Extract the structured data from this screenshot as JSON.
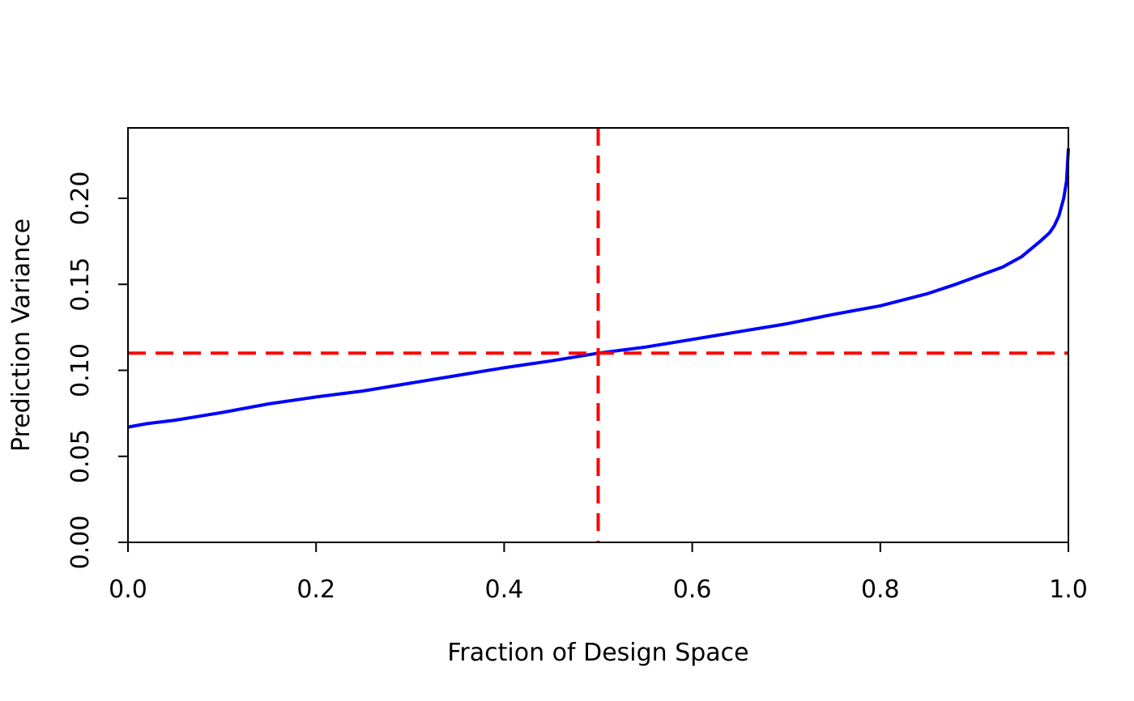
{
  "chart_data": {
    "type": "line",
    "title": "",
    "xlabel": "Fraction of Design Space",
    "ylabel": "Prediction Variance",
    "xlim": [
      0,
      1
    ],
    "ylim": [
      0,
      0.24
    ],
    "x_ticks": [
      {
        "value": 0.0,
        "label": "0.0"
      },
      {
        "value": 0.2,
        "label": "0.2"
      },
      {
        "value": 0.4,
        "label": "0.4"
      },
      {
        "value": 0.6,
        "label": "0.6"
      },
      {
        "value": 0.8,
        "label": "0.8"
      },
      {
        "value": 1.0,
        "label": "1.0"
      }
    ],
    "y_ticks": [
      {
        "value": 0.0,
        "label": "0.00"
      },
      {
        "value": 0.05,
        "label": "0.05"
      },
      {
        "value": 0.1,
        "label": "0.10"
      },
      {
        "value": 0.15,
        "label": "0.15"
      },
      {
        "value": 0.2,
        "label": "0.20"
      }
    ],
    "grid": false,
    "series": [
      {
        "color": "#0000ff",
        "x": [
          0.0,
          0.02,
          0.05,
          0.1,
          0.15,
          0.2,
          0.25,
          0.3,
          0.35,
          0.4,
          0.45,
          0.5,
          0.55,
          0.6,
          0.65,
          0.7,
          0.75,
          0.8,
          0.85,
          0.88,
          0.9,
          0.93,
          0.95,
          0.97,
          0.98,
          0.985,
          0.99,
          0.995,
          0.998,
          1.0
        ],
        "y": [
          0.067,
          0.069,
          0.071,
          0.0755,
          0.0805,
          0.0845,
          0.088,
          0.0925,
          0.097,
          0.1015,
          0.1055,
          0.11,
          0.1135,
          0.118,
          0.1225,
          0.127,
          0.1325,
          0.1375,
          0.1445,
          0.15,
          0.154,
          0.16,
          0.166,
          0.175,
          0.18,
          0.184,
          0.19,
          0.2,
          0.21,
          0.229
        ]
      }
    ],
    "reference_lines": [
      {
        "orientation": "vertical",
        "value": 0.5,
        "color": "#ff0000",
        "style": "dashed"
      },
      {
        "orientation": "horizontal",
        "value": 0.11,
        "color": "#ff0000",
        "style": "dashed"
      }
    ]
  }
}
